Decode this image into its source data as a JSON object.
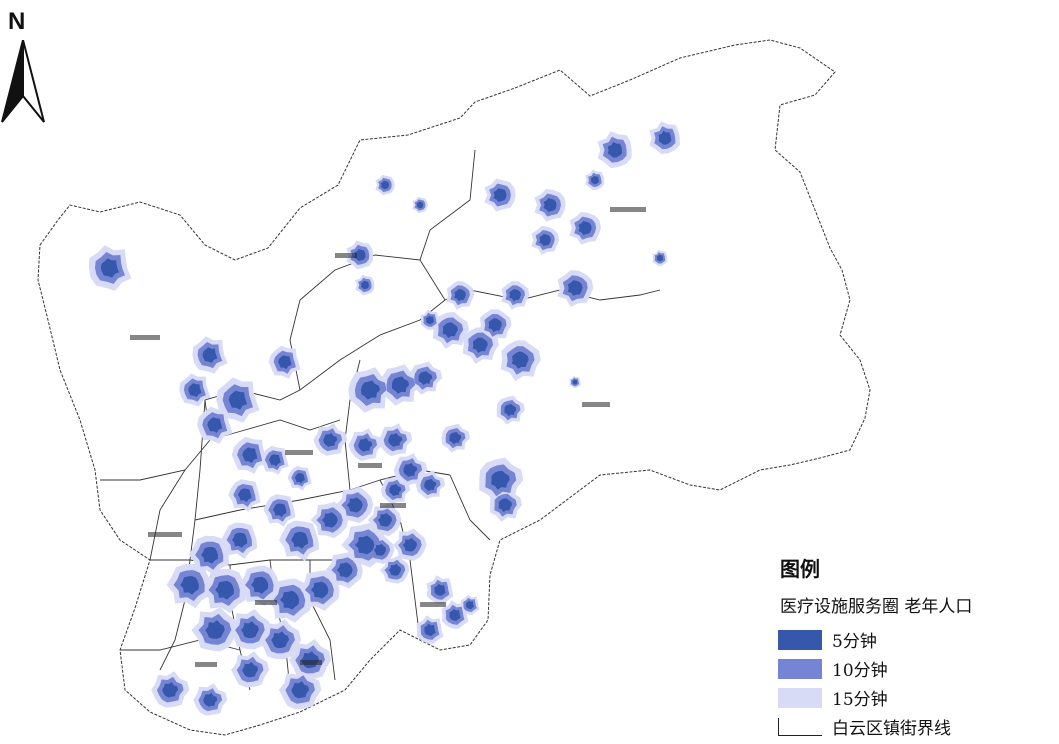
{
  "north": {
    "label": "N",
    "icon": "north-arrow-icon"
  },
  "legend": {
    "title": "图例",
    "subtitle": "医疗设施服务圈   老年人口",
    "items": [
      {
        "label": "5分钟",
        "color": "#3558ad"
      },
      {
        "label": "10分钟",
        "color": "#7585d3"
      },
      {
        "label": "15分钟",
        "color": "#d8dbf6"
      }
    ],
    "boundary_label": "白云区镇街界线"
  },
  "colors": {
    "boundary": "#333333",
    "ring_outer": "#d8dbf6",
    "ring_mid": "#7585d3",
    "ring_inner": "#3558ad"
  }
}
